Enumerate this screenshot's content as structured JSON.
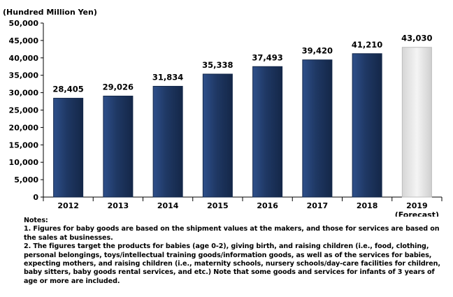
{
  "chart_data": {
    "type": "bar",
    "unit_label": "(Hundred Million Yen)",
    "categories": [
      "2012",
      "2013",
      "2014",
      "2015",
      "2016",
      "2017",
      "2018",
      "2019"
    ],
    "category_sublabels": [
      "",
      "",
      "",
      "",
      "",
      "",
      "",
      "(Forecast)"
    ],
    "values": [
      28405,
      29026,
      31834,
      35338,
      37493,
      39420,
      41210,
      43030
    ],
    "value_labels": [
      "28,405",
      "29,026",
      "31,834",
      "35,338",
      "37,493",
      "39,420",
      "41,210",
      "43,030"
    ],
    "forecast": [
      false,
      false,
      false,
      false,
      false,
      false,
      false,
      true
    ],
    "ylim": [
      0,
      50000
    ],
    "yticks": [
      0,
      5000,
      10000,
      15000,
      20000,
      25000,
      30000,
      35000,
      40000,
      45000,
      50000
    ],
    "ytick_labels": [
      "0",
      "5,000",
      "10,000",
      "15,000",
      "20,000",
      "25,000",
      "30,000",
      "35,000",
      "40,000",
      "45,000",
      "50,000"
    ],
    "colors": {
      "actual": "#1f3864",
      "forecast": "#e8e8e8"
    },
    "grid": false,
    "legend": "none"
  },
  "notes": {
    "heading": "Notes:",
    "note1": "1. Figures for baby goods are based on the shipment values at the makers, and those for services are based on the sales at businesses.",
    "note2": "2. The figures target the products for babies (age 0-2), giving birth, and raising children (i.e., food, clothing, personal belongings, toys/intellectual training goods/information goods, as well as of the services for babies, expecting mothers, and raising children (i.e., maternity schools, nursery schools/day-care facilities for children, baby sitters, baby goods rental services, and etc.) Note that some goods and services for infants of 3 years of age or more are included."
  }
}
